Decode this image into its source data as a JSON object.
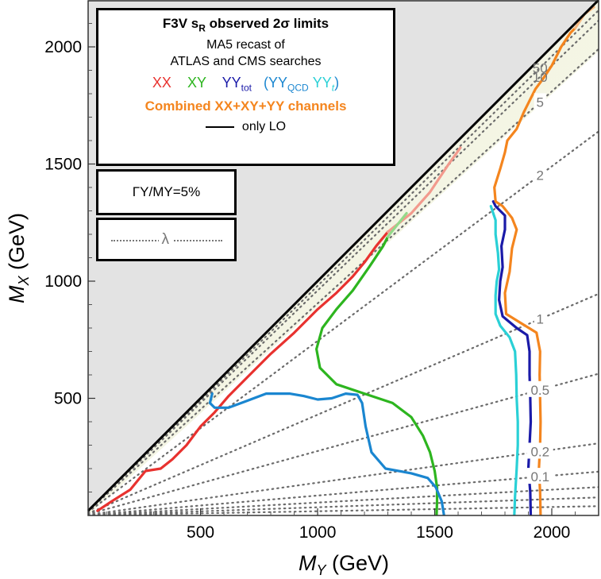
{
  "chart_data": {
    "type": "line",
    "xlabel": "M",
    "xlabel_sub": "Y",
    "xlabel_unit": " (GeV)",
    "ylabel": "M",
    "ylabel_sub": "X",
    "ylabel_unit": " (GeV)",
    "xlim": [
      20,
      2200
    ],
    "ylim": [
      0,
      2200
    ],
    "xticks": [
      500,
      1000,
      1500,
      2000
    ],
    "yticks": [
      500,
      1000,
      1500,
      2000
    ],
    "excluded_region": "M_X > M_Y",
    "lambda_lines": [
      {
        "label": "50",
        "slope": 0.98
      },
      {
        "label": "10",
        "slope": 0.96
      },
      {
        "label": "5",
        "slope": 0.905
      },
      {
        "label": "2",
        "slope": 0.745
      },
      {
        "label": "1",
        "slope": 0.43
      },
      {
        "label": "0.5",
        "slope": 0.275
      },
      {
        "label": "0.2",
        "slope": 0.14
      },
      {
        "label": "0.1",
        "slope": 0.085
      },
      {
        "label": "",
        "slope": 0.055
      },
      {
        "label": "",
        "slope": 0.035
      },
      {
        "label": "",
        "slope": 0.018
      }
    ],
    "series": [
      {
        "name": "XX",
        "color": "#e8322f",
        "points": [
          [
            60,
            20
          ],
          [
            120,
            60
          ],
          [
            200,
            110
          ],
          [
            265,
            190
          ],
          [
            330,
            200
          ],
          [
            380,
            240
          ],
          [
            440,
            300
          ],
          [
            500,
            380
          ],
          [
            560,
            440
          ],
          [
            620,
            510
          ],
          [
            700,
            590
          ],
          [
            800,
            690
          ],
          [
            900,
            780
          ],
          [
            1000,
            880
          ],
          [
            1080,
            950
          ],
          [
            1150,
            1020
          ],
          [
            1200,
            1080
          ],
          [
            1250,
            1150
          ],
          [
            1300,
            1210
          ]
        ]
      },
      {
        "name": "XX_faded",
        "color": "#f29a8d",
        "points": [
          [
            1300,
            1210
          ],
          [
            1400,
            1290
          ],
          [
            1480,
            1380
          ],
          [
            1560,
            1500
          ],
          [
            1610,
            1570
          ]
        ]
      },
      {
        "name": "XY",
        "color": "#2db51f",
        "points": [
          [
            1508,
            0
          ],
          [
            1510,
            60
          ],
          [
            1510,
            120
          ],
          [
            1500,
            190
          ],
          [
            1480,
            270
          ],
          [
            1450,
            340
          ],
          [
            1400,
            420
          ],
          [
            1320,
            480
          ],
          [
            1200,
            520
          ],
          [
            1080,
            560
          ],
          [
            1010,
            630
          ],
          [
            995,
            710
          ],
          [
            1020,
            800
          ],
          [
            1080,
            880
          ],
          [
            1150,
            960
          ],
          [
            1220,
            1060
          ],
          [
            1280,
            1150
          ],
          [
            1300,
            1190
          ]
        ]
      },
      {
        "name": "XY_faded",
        "color": "#94d98a",
        "points": [
          [
            1300,
            1190
          ],
          [
            1340,
            1240
          ],
          [
            1380,
            1290
          ]
        ]
      },
      {
        "name": "YY_QCD",
        "color": "#1a86d0",
        "points": [
          [
            1540,
            0
          ],
          [
            1530,
            60
          ],
          [
            1505,
            120
          ],
          [
            1470,
            160
          ],
          [
            1400,
            180
          ],
          [
            1290,
            200
          ],
          [
            1230,
            270
          ],
          [
            1205,
            380
          ],
          [
            1190,
            480
          ],
          [
            1170,
            515
          ],
          [
            1120,
            520
          ],
          [
            1060,
            500
          ],
          [
            1000,
            495
          ],
          [
            940,
            510
          ],
          [
            880,
            520
          ],
          [
            780,
            520
          ],
          [
            700,
            490
          ],
          [
            620,
            460
          ],
          [
            560,
            460
          ],
          [
            540,
            480
          ],
          [
            550,
            520
          ]
        ]
      },
      {
        "name": "YY_t",
        "color": "#2ad0d6",
        "points": [
          [
            1840,
            0
          ],
          [
            1843,
            80
          ],
          [
            1850,
            200
          ],
          [
            1855,
            300
          ],
          [
            1855,
            400
          ],
          [
            1850,
            500
          ],
          [
            1848,
            600
          ],
          [
            1843,
            700
          ],
          [
            1820,
            760
          ],
          [
            1780,
            810
          ],
          [
            1760,
            860
          ],
          [
            1760,
            940
          ],
          [
            1765,
            1000
          ],
          [
            1775,
            1050
          ],
          [
            1770,
            1120
          ],
          [
            1760,
            1200
          ],
          [
            1760,
            1260
          ],
          [
            1740,
            1320
          ]
        ]
      },
      {
        "name": "YY_tot",
        "color": "#1a1aa8",
        "points": [
          [
            1910,
            0
          ],
          [
            1908,
            100
          ],
          [
            1900,
            200
          ],
          [
            1905,
            300
          ],
          [
            1910,
            400
          ],
          [
            1908,
            500
          ],
          [
            1905,
            600
          ],
          [
            1905,
            700
          ],
          [
            1895,
            770
          ],
          [
            1850,
            800
          ],
          [
            1790,
            850
          ],
          [
            1775,
            920
          ],
          [
            1780,
            1000
          ],
          [
            1790,
            1060
          ],
          [
            1785,
            1150
          ],
          [
            1800,
            1220
          ],
          [
            1800,
            1280
          ],
          [
            1760,
            1320
          ],
          [
            1750,
            1340
          ]
        ]
      },
      {
        "name": "Combined",
        "color": "#f4851e",
        "points": [
          [
            1952,
            0
          ],
          [
            1950,
            100
          ],
          [
            1945,
            200
          ],
          [
            1950,
            300
          ],
          [
            1952,
            400
          ],
          [
            1950,
            500
          ],
          [
            1948,
            600
          ],
          [
            1950,
            700
          ],
          [
            1935,
            780
          ],
          [
            1870,
            820
          ],
          [
            1805,
            860
          ],
          [
            1800,
            950
          ],
          [
            1820,
            1040
          ],
          [
            1830,
            1140
          ],
          [
            1850,
            1220
          ],
          [
            1830,
            1270
          ],
          [
            1790,
            1320
          ],
          [
            1760,
            1340
          ],
          [
            1755,
            1400
          ],
          [
            1780,
            1480
          ],
          [
            1800,
            1550
          ],
          [
            1810,
            1600
          ],
          [
            1850,
            1650
          ],
          [
            1880,
            1720
          ],
          [
            1900,
            1760
          ],
          [
            1930,
            1820
          ],
          [
            1960,
            1860
          ],
          [
            2000,
            1920
          ],
          [
            2040,
            2000
          ],
          [
            2080,
            2060
          ],
          [
            2100,
            2080
          ]
        ]
      },
      {
        "name": "Combined_faded",
        "color": "#f7b983",
        "points": [
          [
            2100,
            2080
          ],
          [
            2140,
            2140
          ],
          [
            2180,
            2170
          ]
        ]
      }
    ]
  },
  "legend": {
    "title_main": "F3V s",
    "title_sub": "R",
    "title_rest": " observed 2σ limits",
    "line1": "MA5 recast of",
    "line2": "ATLAS and CMS searches",
    "xx": "XX",
    "xy": "XY",
    "yytot": "YY",
    "yytot_sub": "tot",
    "open_paren": "(",
    "yyqcd": "YY",
    "yyqcd_sub": "QCD",
    "yyt": "YY",
    "yyt_sub": "t",
    "close_paren": ")",
    "combined": "Combined XX+XY+YY channels",
    "only_lo": "only LO",
    "width_label": "ΓY/MY=5%",
    "lambda_symbol": "λ"
  },
  "colors": {
    "xx": "#e8322f",
    "xy": "#2db51f",
    "yytot": "#1a1aa8",
    "yyqcd": "#1a86d0",
    "yyt": "#2ad0d6",
    "combined": "#f4851e"
  }
}
